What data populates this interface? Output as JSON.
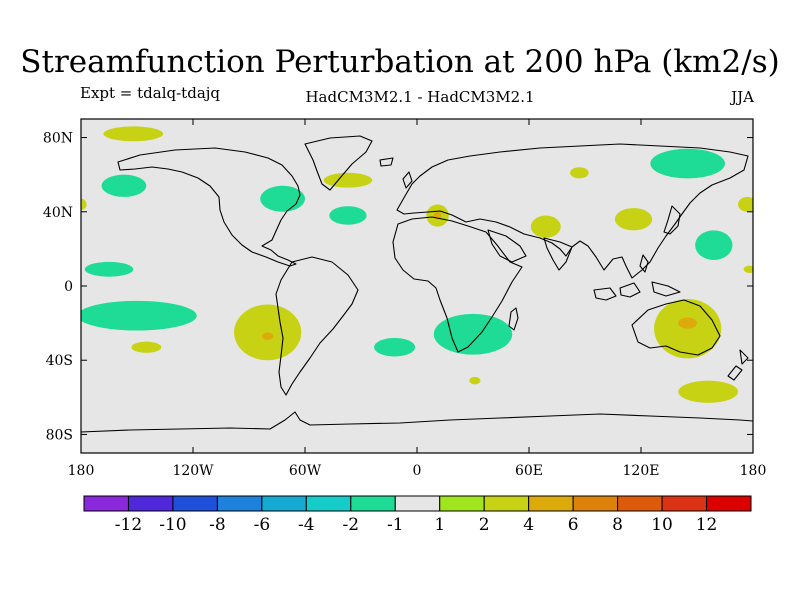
{
  "chart_data": {
    "type": "heatmap",
    "title": "Streamfunction Perturbation at 200 hPa (km2/s)",
    "subtitle_left": "Expt = tdalq-tdajq",
    "subtitle_center": "HadCM3M2.1 - HadCM3M2.1",
    "subtitle_right": "JJA",
    "xlim": [
      -180,
      180
    ],
    "ylim": [
      -90,
      90
    ],
    "x_ticks": [
      {
        "value": -180,
        "label": "180"
      },
      {
        "value": -120,
        "label": "120W"
      },
      {
        "value": -60,
        "label": "60W"
      },
      {
        "value": 0,
        "label": "0"
      },
      {
        "value": 60,
        "label": "60E"
      },
      {
        "value": 120,
        "label": "120E"
      },
      {
        "value": 180,
        "label": "180"
      }
    ],
    "y_ticks": [
      {
        "value": 80,
        "label": "80N"
      },
      {
        "value": 40,
        "label": "40N"
      },
      {
        "value": 0,
        "label": "0"
      },
      {
        "value": -40,
        "label": "40S"
      },
      {
        "value": -80,
        "label": "80S"
      }
    ],
    "colorbar": {
      "colors": [
        "#8a28dc",
        "#5028dc",
        "#1e50dc",
        "#1e82dc",
        "#14aad2",
        "#14cdc8",
        "#1edc96",
        "#e6e6e6",
        "#a0e61e",
        "#c8d214",
        "#dcaa0a",
        "#dc820a",
        "#dc5a0a",
        "#dc3214",
        "#dc0000"
      ],
      "boundaries": [
        -12,
        -10,
        -8,
        -6,
        -4,
        -2,
        -1,
        1,
        2,
        4,
        6,
        8,
        10,
        12
      ]
    },
    "anomalies": [
      {
        "lon": -152,
        "lat": 82,
        "rlon": 16,
        "rlat": 4,
        "level": 2
      },
      {
        "lon": -157,
        "lat": 54,
        "rlon": 12,
        "rlat": 6,
        "level": -2
      },
      {
        "lon": -180,
        "lat": 44,
        "rlon": 3,
        "rlat": 3,
        "level": 2
      },
      {
        "lon": -165,
        "lat": 9,
        "rlon": 13,
        "rlat": 4,
        "level": -2
      },
      {
        "lon": -150,
        "lat": -16,
        "rlon": 32,
        "rlat": 8,
        "level": -2
      },
      {
        "lon": -145,
        "lat": -33,
        "rlon": 8,
        "rlat": 3,
        "level": 2
      },
      {
        "lon": -80,
        "lat": -25,
        "rlon": 18,
        "rlat": 15,
        "level": 2
      },
      {
        "lon": -80,
        "lat": -27,
        "rlon": 3,
        "rlat": 2,
        "level": 4
      },
      {
        "lon": -72,
        "lat": 47,
        "rlon": 12,
        "rlat": 7,
        "level": -2
      },
      {
        "lon": -37,
        "lat": 57,
        "rlon": 13,
        "rlat": 4,
        "level": 2
      },
      {
        "lon": -37,
        "lat": 38,
        "rlon": 10,
        "rlat": 5,
        "level": -2
      },
      {
        "lon": -12,
        "lat": -33,
        "rlon": 11,
        "rlat": 5,
        "level": -2
      },
      {
        "lon": 30,
        "lat": -26,
        "rlon": 21,
        "rlat": 11,
        "level": -2
      },
      {
        "lon": 31,
        "lat": -51,
        "rlon": 3,
        "rlat": 2,
        "level": 2
      },
      {
        "lon": 11,
        "lat": 38,
        "rlon": 6,
        "rlat": 6,
        "level": 2
      },
      {
        "lon": 11,
        "lat": 38,
        "rlon": 2,
        "rlat": 2,
        "level": 4
      },
      {
        "lon": 69,
        "lat": 32,
        "rlon": 8,
        "rlat": 6,
        "level": 2
      },
      {
        "lon": 87,
        "lat": 61,
        "rlon": 5,
        "rlat": 3,
        "level": 2
      },
      {
        "lon": 116,
        "lat": 36,
        "rlon": 10,
        "rlat": 6,
        "level": 2
      },
      {
        "lon": 145,
        "lat": 66,
        "rlon": 20,
        "rlat": 8,
        "level": -2
      },
      {
        "lon": 177,
        "lat": 44,
        "rlon": 5,
        "rlat": 4,
        "level": 2
      },
      {
        "lon": 159,
        "lat": 22,
        "rlon": 10,
        "rlat": 8,
        "level": -2
      },
      {
        "lon": 178,
        "lat": 9,
        "rlon": 3,
        "rlat": 2,
        "level": 2
      },
      {
        "lon": 145,
        "lat": -23,
        "rlon": 18,
        "rlat": 16,
        "level": 2
      },
      {
        "lon": 145,
        "lat": -20,
        "rlon": 5,
        "rlat": 3,
        "level": 4
      },
      {
        "lon": 156,
        "lat": -57,
        "rlon": 16,
        "rlat": 6,
        "level": 2
      }
    ]
  }
}
